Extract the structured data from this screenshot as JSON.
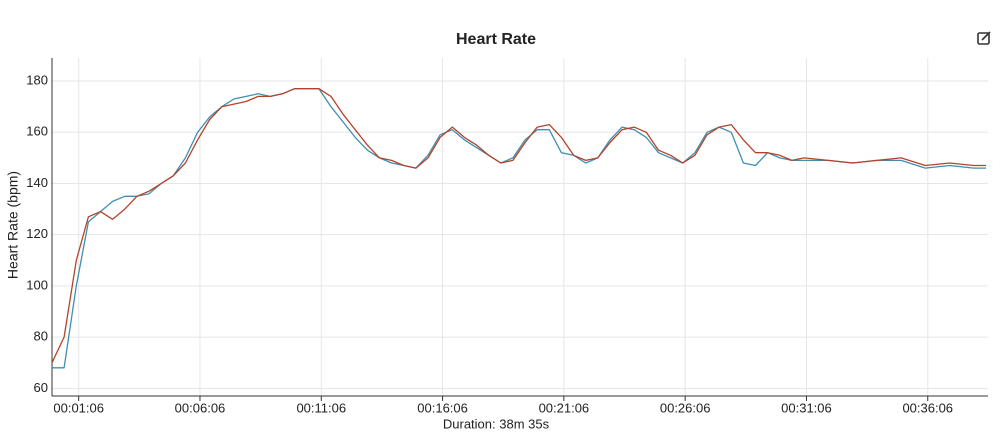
{
  "chart_data": {
    "type": "line",
    "title": "Heart Rate",
    "ylabel": "Heart Rate (bpm)",
    "xlabel": "Duration: 38m 35s",
    "x": [
      0,
      30,
      60,
      90,
      120,
      150,
      180,
      210,
      240,
      270,
      300,
      330,
      360,
      390,
      420,
      450,
      480,
      510,
      540,
      570,
      600,
      630,
      660,
      690,
      720,
      750,
      780,
      810,
      840,
      870,
      900,
      930,
      960,
      990,
      1020,
      1050,
      1080,
      1110,
      1140,
      1170,
      1200,
      1230,
      1260,
      1290,
      1320,
      1350,
      1380,
      1410,
      1440,
      1470,
      1500,
      1530,
      1560,
      1590,
      1620,
      1650,
      1680,
      1710,
      1740,
      1770,
      1800,
      1830,
      1860,
      1920,
      1980,
      2040,
      2100,
      2160,
      2220,
      2280,
      2310
    ],
    "series": [
      {
        "color": "#3f8fb3",
        "values": [
          68,
          68,
          100,
          125,
          129,
          133,
          135,
          135,
          136,
          140,
          143,
          150,
          160,
          166,
          170,
          173,
          174,
          175,
          174,
          175,
          177,
          177,
          177,
          170,
          164,
          158,
          153,
          150,
          148,
          147,
          146,
          151,
          159,
          161,
          157,
          154,
          151,
          148,
          150,
          157,
          161,
          161,
          152,
          151,
          148,
          150,
          157,
          162,
          161,
          158,
          152,
          150,
          148,
          152,
          160,
          162,
          160,
          148,
          147,
          152,
          150,
          149,
          149,
          149,
          148,
          149,
          149,
          146,
          147,
          146,
          146
        ]
      },
      {
        "color": "#b5432a",
        "values": [
          70,
          80,
          110,
          127,
          129,
          126,
          130,
          135,
          137,
          140,
          143,
          148,
          157,
          165,
          170,
          171,
          172,
          174,
          174,
          175,
          177,
          177,
          177,
          174,
          167,
          161,
          155,
          150,
          149,
          147,
          146,
          150,
          158,
          162,
          158,
          155,
          151,
          148,
          149,
          156,
          162,
          163,
          158,
          151,
          149,
          150,
          156,
          161,
          162,
          160,
          153,
          151,
          148,
          151,
          159,
          162,
          163,
          157,
          152,
          152,
          151,
          149,
          150,
          149,
          148,
          149,
          150,
          147,
          148,
          147,
          147
        ]
      }
    ],
    "xlim": [
      0,
      2315
    ],
    "ylim": [
      57,
      189
    ],
    "xticks": [
      {
        "value": 66,
        "label": "00:01:06"
      },
      {
        "value": 366,
        "label": "00:06:06"
      },
      {
        "value": 666,
        "label": "00:11:06"
      },
      {
        "value": 966,
        "label": "00:16:06"
      },
      {
        "value": 1266,
        "label": "00:21:06"
      },
      {
        "value": 1566,
        "label": "00:26:06"
      },
      {
        "value": 1866,
        "label": "00:31:06"
      },
      {
        "value": 2166,
        "label": "00:36:06"
      }
    ],
    "yticks": [
      60,
      80,
      100,
      120,
      140,
      160,
      180
    ],
    "grid": true
  }
}
